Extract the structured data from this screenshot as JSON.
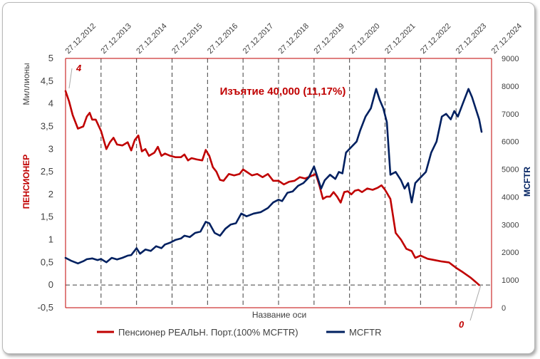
{
  "chart_data": {
    "type": "line",
    "title": "",
    "annotation": "Изъятие 40,000 (11,17%)",
    "xlabel": "Название оси",
    "ylabel_left": "ПЕНСИОНЕР",
    "ylabel_left_units": "Миллионы",
    "ylabel_right": "MCFTR",
    "ylim_left": [
      -0.5,
      5
    ],
    "ylim_right": [
      0,
      9000
    ],
    "y_ticks_left": [
      "-0,5",
      "0",
      "0,5",
      "1",
      "1,5",
      "2",
      "2,5",
      "3",
      "3,5",
      "4",
      "4,5",
      "5"
    ],
    "y_ticks_right": [
      "0",
      "1000",
      "2000",
      "3000",
      "4000",
      "5000",
      "6000",
      "7000",
      "8000",
      "9000"
    ],
    "x_ticks": [
      "27.12.2012",
      "27.12.2013",
      "27.12.2014",
      "27.12.2015",
      "27.12.2016",
      "27.12.2017",
      "27.12.2018",
      "27.12.2019",
      "27.12.2020",
      "27.12.2021",
      "27.12.2022",
      "27.12.2023",
      "27.12.2024"
    ],
    "x_tick_years": [
      2012,
      2013,
      2014,
      2015,
      2016,
      2017,
      2018,
      2019,
      2020,
      2021,
      2022,
      2023,
      2024
    ],
    "data_labels": [
      {
        "text": "4",
        "series": "pensioner",
        "x": 2012.0
      },
      {
        "text": "0",
        "series": "pensioner",
        "x": 2023.65
      }
    ],
    "series": [
      {
        "name": "Пенсионер РЕАЛЬН. Порт.(100% MCFTR)",
        "axis": "left",
        "color": "#c00000",
        "points": [
          [
            2012.0,
            4.28
          ],
          [
            2012.1,
            4.05
          ],
          [
            2012.2,
            3.75
          ],
          [
            2012.35,
            3.45
          ],
          [
            2012.5,
            3.5
          ],
          [
            2012.6,
            3.72
          ],
          [
            2012.68,
            3.8
          ],
          [
            2012.75,
            3.65
          ],
          [
            2012.85,
            3.65
          ],
          [
            2013.0,
            3.4
          ],
          [
            2013.15,
            3.0
          ],
          [
            2013.25,
            3.15
          ],
          [
            2013.35,
            3.25
          ],
          [
            2013.45,
            3.1
          ],
          [
            2013.6,
            3.08
          ],
          [
            2013.75,
            3.15
          ],
          [
            2013.85,
            2.97
          ],
          [
            2013.95,
            3.2
          ],
          [
            2014.05,
            3.3
          ],
          [
            2014.15,
            2.95
          ],
          [
            2014.25,
            3.0
          ],
          [
            2014.35,
            2.85
          ],
          [
            2014.5,
            2.92
          ],
          [
            2014.6,
            3.05
          ],
          [
            2014.7,
            2.85
          ],
          [
            2014.8,
            2.9
          ],
          [
            2014.95,
            2.85
          ],
          [
            2015.1,
            2.82
          ],
          [
            2015.25,
            2.82
          ],
          [
            2015.35,
            2.88
          ],
          [
            2015.45,
            2.75
          ],
          [
            2015.55,
            2.8
          ],
          [
            2015.7,
            2.77
          ],
          [
            2015.85,
            2.75
          ],
          [
            2015.95,
            2.98
          ],
          [
            2016.05,
            2.85
          ],
          [
            2016.15,
            2.6
          ],
          [
            2016.25,
            2.5
          ],
          [
            2016.35,
            2.32
          ],
          [
            2016.45,
            2.3
          ],
          [
            2016.6,
            2.45
          ],
          [
            2016.75,
            2.42
          ],
          [
            2016.9,
            2.45
          ],
          [
            2017.0,
            2.55
          ],
          [
            2017.1,
            2.5
          ],
          [
            2017.25,
            2.42
          ],
          [
            2017.4,
            2.45
          ],
          [
            2017.55,
            2.38
          ],
          [
            2017.7,
            2.45
          ],
          [
            2017.85,
            2.3
          ],
          [
            2018.0,
            2.3
          ],
          [
            2018.15,
            2.22
          ],
          [
            2018.3,
            2.28
          ],
          [
            2018.45,
            2.3
          ],
          [
            2018.6,
            2.38
          ],
          [
            2018.75,
            2.35
          ],
          [
            2018.9,
            2.4
          ],
          [
            2019.05,
            2.45
          ],
          [
            2019.15,
            2.2
          ],
          [
            2019.25,
            1.9
          ],
          [
            2019.35,
            1.95
          ],
          [
            2019.45,
            1.95
          ],
          [
            2019.55,
            2.05
          ],
          [
            2019.65,
            1.95
          ],
          [
            2019.75,
            1.82
          ],
          [
            2019.85,
            2.05
          ],
          [
            2019.95,
            2.07
          ],
          [
            2020.05,
            2.0
          ],
          [
            2020.15,
            2.08
          ],
          [
            2020.25,
            2.1
          ],
          [
            2020.35,
            2.05
          ],
          [
            2020.5,
            2.13
          ],
          [
            2020.65,
            2.1
          ],
          [
            2020.8,
            2.15
          ],
          [
            2020.9,
            2.2
          ],
          [
            2021.0,
            2.1
          ],
          [
            2021.15,
            1.9
          ],
          [
            2021.3,
            1.15
          ],
          [
            2021.45,
            1.0
          ],
          [
            2021.6,
            0.8
          ],
          [
            2021.75,
            0.75
          ],
          [
            2021.85,
            0.6
          ],
          [
            2022.0,
            0.65
          ],
          [
            2022.2,
            0.58
          ],
          [
            2022.4,
            0.55
          ],
          [
            2022.6,
            0.52
          ],
          [
            2022.8,
            0.5
          ],
          [
            2023.0,
            0.38
          ],
          [
            2023.2,
            0.28
          ],
          [
            2023.4,
            0.17
          ],
          [
            2023.55,
            0.07
          ],
          [
            2023.65,
            0.0
          ]
        ]
      },
      {
        "name": "MCFTR",
        "axis": "right",
        "color": "#002060",
        "points": [
          [
            2012.0,
            1800
          ],
          [
            2012.15,
            1700
          ],
          [
            2012.35,
            1600
          ],
          [
            2012.5,
            1680
          ],
          [
            2012.6,
            1750
          ],
          [
            2012.75,
            1780
          ],
          [
            2012.9,
            1720
          ],
          [
            2013.0,
            1760
          ],
          [
            2013.15,
            1640
          ],
          [
            2013.3,
            1800
          ],
          [
            2013.45,
            1740
          ],
          [
            2013.6,
            1800
          ],
          [
            2013.75,
            1880
          ],
          [
            2013.85,
            1900
          ],
          [
            2014.0,
            2150
          ],
          [
            2014.1,
            1950
          ],
          [
            2014.25,
            2100
          ],
          [
            2014.4,
            2050
          ],
          [
            2014.55,
            2220
          ],
          [
            2014.7,
            2150
          ],
          [
            2014.8,
            2280
          ],
          [
            2014.95,
            2350
          ],
          [
            2015.1,
            2450
          ],
          [
            2015.25,
            2500
          ],
          [
            2015.35,
            2600
          ],
          [
            2015.5,
            2550
          ],
          [
            2015.65,
            2700
          ],
          [
            2015.8,
            2750
          ],
          [
            2015.95,
            3100
          ],
          [
            2016.05,
            3050
          ],
          [
            2016.2,
            2700
          ],
          [
            2016.35,
            2600
          ],
          [
            2016.5,
            2850
          ],
          [
            2016.65,
            3000
          ],
          [
            2016.8,
            3050
          ],
          [
            2016.95,
            3400
          ],
          [
            2017.1,
            3300
          ],
          [
            2017.3,
            3400
          ],
          [
            2017.5,
            3450
          ],
          [
            2017.7,
            3600
          ],
          [
            2017.85,
            3800
          ],
          [
            2018.0,
            3900
          ],
          [
            2018.1,
            3850
          ],
          [
            2018.25,
            4150
          ],
          [
            2018.4,
            4200
          ],
          [
            2018.55,
            4400
          ],
          [
            2018.7,
            4500
          ],
          [
            2018.85,
            4700
          ],
          [
            2019.0,
            5100
          ],
          [
            2019.1,
            4700
          ],
          [
            2019.2,
            4300
          ],
          [
            2019.3,
            4600
          ],
          [
            2019.45,
            4800
          ],
          [
            2019.6,
            4650
          ],
          [
            2019.7,
            4900
          ],
          [
            2019.8,
            4850
          ],
          [
            2019.9,
            5600
          ],
          [
            2020.05,
            5800
          ],
          [
            2020.2,
            6000
          ],
          [
            2020.3,
            6400
          ],
          [
            2020.45,
            6900
          ],
          [
            2020.6,
            7200
          ],
          [
            2020.75,
            7900
          ],
          [
            2020.85,
            7500
          ],
          [
            2020.95,
            7200
          ],
          [
            2021.05,
            6700
          ],
          [
            2021.15,
            4800
          ],
          [
            2021.3,
            4900
          ],
          [
            2021.45,
            4600
          ],
          [
            2021.55,
            4300
          ],
          [
            2021.65,
            4500
          ],
          [
            2021.75,
            3800
          ],
          [
            2021.85,
            4500
          ],
          [
            2022.0,
            4700
          ],
          [
            2022.15,
            4900
          ],
          [
            2022.3,
            5600
          ],
          [
            2022.45,
            6000
          ],
          [
            2022.6,
            6900
          ],
          [
            2022.72,
            7000
          ],
          [
            2022.85,
            6800
          ],
          [
            2022.95,
            7100
          ],
          [
            2023.05,
            6900
          ],
          [
            2023.2,
            7400
          ],
          [
            2023.35,
            7900
          ],
          [
            2023.45,
            7600
          ],
          [
            2023.55,
            7200
          ],
          [
            2023.65,
            6800
          ],
          [
            2023.72,
            6350
          ]
        ]
      }
    ],
    "legend_position": "bottom",
    "grid": "vertical dashed"
  }
}
